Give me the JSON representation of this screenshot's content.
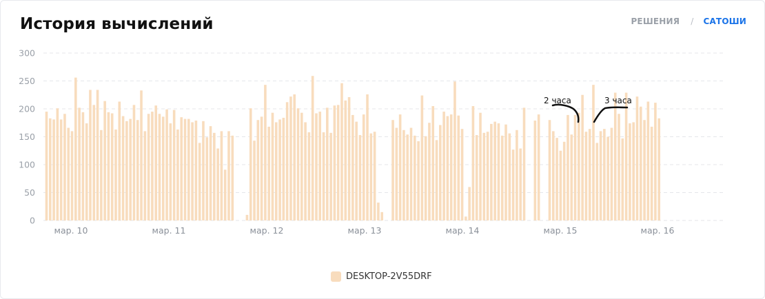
{
  "header": {
    "title": "История вычислений",
    "tabs": [
      {
        "label": "РЕШЕНИЯ",
        "active": false
      },
      {
        "label": "САТОШИ",
        "active": true
      }
    ]
  },
  "legend": {
    "label": "DESKTOP-2V55DRF",
    "color": "#f8dcbd"
  },
  "annotations": [
    {
      "text": "2 часа"
    },
    {
      "text": "3 часа"
    }
  ],
  "chart_data": {
    "type": "bar",
    "ylim": [
      0,
      300
    ],
    "yticks": [
      0,
      50,
      100,
      150,
      200,
      250,
      300
    ],
    "grid": true,
    "bar_color": "#f8dcbd",
    "xlabels": [
      "мар. 10",
      "мар. 11",
      "мар. 12",
      "мар. 13",
      "мар. 14",
      "мар. 15",
      "мар. 16"
    ],
    "series": [
      {
        "name": "DESKTOP-2V55DRF",
        "values": [
          195,
          183,
          181,
          201,
          181,
          191,
          166,
          160,
          256,
          202,
          194,
          174,
          234,
          207,
          234,
          162,
          214,
          194,
          192,
          163,
          213,
          187,
          178,
          182,
          207,
          180,
          233,
          160,
          191,
          195,
          206,
          191,
          186,
          199,
          174,
          198,
          163,
          185,
          182,
          182,
          176,
          179,
          139,
          178,
          149,
          169,
          157,
          129,
          160,
          91,
          160,
          152,
          0,
          0,
          0,
          10,
          201,
          143,
          180,
          186,
          243,
          168,
          193,
          176,
          181,
          184,
          212,
          222,
          226,
          201,
          193,
          176,
          158,
          259,
          192,
          195,
          158,
          202,
          157,
          206,
          207,
          246,
          215,
          221,
          189,
          177,
          153,
          190,
          226,
          156,
          159,
          32,
          15,
          0,
          0,
          180,
          166,
          190,
          162,
          154,
          166,
          152,
          142,
          224,
          151,
          175,
          205,
          144,
          171,
          195,
          187,
          190,
          249,
          188,
          164,
          7,
          60,
          205,
          153,
          193,
          157,
          159,
          173,
          177,
          174,
          152,
          172,
          156,
          127,
          162,
          129,
          202,
          0,
          0,
          179,
          190,
          0,
          0,
          180,
          160,
          148,
          125,
          141,
          189,
          154,
          189,
          193,
          225,
          159,
          164,
          243,
          139,
          160,
          164,
          150,
          166,
          229,
          191,
          147,
          229,
          174,
          176,
          222,
          204,
          180,
          213,
          168,
          211,
          183
        ]
      }
    ]
  }
}
